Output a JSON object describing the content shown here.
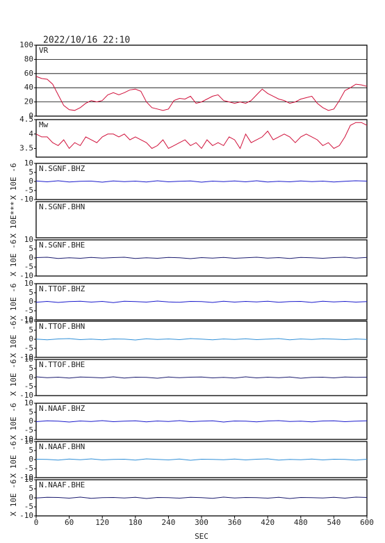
{
  "header": {
    "title": "2022/10/16 22:10"
  },
  "x_axis": {
    "label": "SEC",
    "xlim": [
      0,
      600
    ],
    "xticks": [
      0,
      60,
      120,
      180,
      240,
      300,
      360,
      420,
      480,
      540,
      600
    ]
  },
  "chart_data": [
    {
      "type": "line",
      "title": "VR",
      "color": "#d0103a",
      "grid": true,
      "ylim": [
        0,
        100
      ],
      "yticks": [
        0,
        20,
        40,
        60,
        80,
        100
      ],
      "x": [
        0,
        10,
        20,
        30,
        40,
        50,
        60,
        70,
        80,
        90,
        100,
        110,
        120,
        130,
        140,
        150,
        160,
        170,
        180,
        190,
        200,
        210,
        220,
        230,
        240,
        250,
        260,
        270,
        280,
        290,
        300,
        310,
        320,
        330,
        340,
        350,
        360,
        370,
        380,
        390,
        400,
        410,
        420,
        430,
        440,
        450,
        460,
        470,
        480,
        490,
        500,
        510,
        520,
        530,
        540,
        550,
        560,
        570,
        580,
        590,
        600
      ],
      "values": [
        56,
        53,
        52,
        45,
        30,
        15,
        9,
        8,
        12,
        18,
        22,
        20,
        22,
        30,
        33,
        30,
        33,
        37,
        38,
        35,
        20,
        12,
        10,
        8,
        10,
        22,
        25,
        24,
        28,
        18,
        20,
        24,
        28,
        30,
        22,
        20,
        18,
        20,
        18,
        22,
        30,
        38,
        32,
        28,
        24,
        22,
        18,
        20,
        24,
        26,
        28,
        18,
        12,
        8,
        10,
        22,
        36,
        40,
        45,
        44,
        42
      ]
    },
    {
      "type": "line",
      "title": "Mw",
      "color": "#d0103a",
      "grid": false,
      "ylim": [
        3.2,
        4.5
      ],
      "yticks": [
        3.5,
        4.0,
        4.5
      ],
      "x": [
        0,
        10,
        20,
        30,
        40,
        50,
        60,
        70,
        80,
        90,
        100,
        110,
        120,
        130,
        140,
        150,
        160,
        170,
        180,
        190,
        200,
        210,
        220,
        230,
        240,
        250,
        260,
        270,
        280,
        290,
        300,
        310,
        320,
        330,
        340,
        350,
        360,
        370,
        380,
        390,
        400,
        410,
        420,
        430,
        440,
        450,
        460,
        470,
        480,
        490,
        500,
        510,
        520,
        530,
        540,
        550,
        560,
        570,
        580,
        590,
        600
      ],
      "values": [
        4.0,
        3.9,
        3.9,
        3.7,
        3.6,
        3.8,
        3.5,
        3.7,
        3.6,
        3.9,
        3.8,
        3.7,
        3.9,
        4.0,
        4.0,
        3.9,
        4.0,
        3.8,
        3.9,
        3.8,
        3.7,
        3.5,
        3.6,
        3.8,
        3.5,
        3.6,
        3.7,
        3.8,
        3.6,
        3.7,
        3.5,
        3.8,
        3.6,
        3.7,
        3.6,
        3.9,
        3.8,
        3.5,
        4.0,
        3.7,
        3.8,
        3.9,
        4.1,
        3.8,
        3.9,
        4.0,
        3.9,
        3.7,
        3.9,
        4.0,
        3.9,
        3.8,
        3.6,
        3.7,
        3.5,
        3.6,
        3.9,
        4.3,
        4.4,
        4.4,
        4.3
      ]
    },
    {
      "type": "line",
      "title": "N.SGNF.BHZ",
      "ylabel": "X 10E -6",
      "color": "#1a1acc",
      "ylim": [
        -10,
        10
      ],
      "yticks": [
        -10,
        -5,
        0,
        5,
        10
      ],
      "x": [
        0,
        20,
        40,
        60,
        80,
        100,
        120,
        140,
        160,
        180,
        200,
        220,
        240,
        260,
        280,
        300,
        320,
        340,
        360,
        380,
        400,
        420,
        440,
        460,
        480,
        500,
        520,
        540,
        560,
        580,
        600
      ],
      "values": [
        0.3,
        -0.2,
        0.4,
        -0.3,
        0.1,
        0.2,
        -0.4,
        0.3,
        -0.1,
        0.2,
        -0.3,
        0.4,
        -0.2,
        0.1,
        0.3,
        -0.4,
        0.2,
        -0.1,
        0.3,
        -0.2,
        0.4,
        -0.3,
        0.1,
        -0.2,
        0.3,
        -0.1,
        0.2,
        -0.3,
        0.1,
        0.4,
        0.2
      ]
    },
    {
      "type": "empty",
      "title": "N.SGNF.BHN",
      "ylabel": "X 10E***"
    },
    {
      "type": "line",
      "title": "N.SGNF.BHE",
      "ylabel": "X 10E -6",
      "color": "#1a1a6e",
      "ylim": [
        -10,
        10
      ],
      "yticks": [
        -10,
        -5,
        0,
        5,
        10
      ],
      "x": [
        0,
        20,
        40,
        60,
        80,
        100,
        120,
        140,
        160,
        180,
        200,
        220,
        240,
        260,
        280,
        300,
        320,
        340,
        360,
        380,
        400,
        420,
        440,
        460,
        480,
        500,
        520,
        540,
        560,
        580,
        600
      ],
      "values": [
        0.2,
        0.4,
        -0.3,
        0.1,
        -0.2,
        0.3,
        -0.1,
        0.2,
        0.4,
        -0.3,
        0.1,
        -0.2,
        0.3,
        0.1,
        -0.4,
        0.2,
        -0.1,
        0.3,
        -0.2,
        0.1,
        0.4,
        -0.1,
        0.2,
        -0.3,
        0.3,
        0.1,
        -0.2,
        0.2,
        0.4,
        -0.1,
        0.3
      ]
    },
    {
      "type": "line",
      "title": "N.TTOF.BHZ",
      "ylabel": "X 10E -6",
      "color": "#1a1acc",
      "ylim": [
        -10,
        10
      ],
      "yticks": [
        -10,
        -5,
        0,
        5,
        10
      ],
      "x": [
        0,
        20,
        40,
        60,
        80,
        100,
        120,
        140,
        160,
        180,
        200,
        220,
        240,
        260,
        280,
        300,
        320,
        340,
        360,
        380,
        400,
        420,
        440,
        460,
        480,
        500,
        520,
        540,
        560,
        580,
        600
      ],
      "values": [
        -0.3,
        0.2,
        -0.4,
        0.1,
        0.3,
        -0.2,
        0.2,
        -0.5,
        0.3,
        0.1,
        -0.2,
        0.4,
        -0.1,
        -0.3,
        0.2,
        0.1,
        -0.4,
        0.3,
        -0.2,
        0.2,
        -0.1,
        0.3,
        -0.3,
        0.1,
        0.2,
        -0.4,
        0.3,
        -0.1,
        0.2,
        -0.2,
        0.1
      ]
    },
    {
      "type": "line",
      "title": "N.TTOF.BHN",
      "ylabel": "X 10E -6",
      "color": "#2f8fd8",
      "ylim": [
        -10,
        10
      ],
      "yticks": [
        -10,
        -5,
        0,
        5,
        10
      ],
      "x": [
        0,
        20,
        40,
        60,
        80,
        100,
        120,
        140,
        160,
        180,
        200,
        220,
        240,
        260,
        280,
        300,
        320,
        340,
        360,
        380,
        400,
        420,
        440,
        460,
        480,
        500,
        520,
        540,
        560,
        580,
        600
      ],
      "values": [
        0.1,
        -0.3,
        0.2,
        0.4,
        -0.2,
        0.1,
        -0.3,
        0.2,
        0.1,
        -0.4,
        0.3,
        -0.1,
        0.2,
        -0.2,
        0.4,
        0.1,
        -0.3,
        0.2,
        -0.1,
        0.3,
        -0.2,
        0.1,
        0.4,
        -0.3,
        0.2,
        -0.1,
        0.3,
        0.1,
        -0.2,
        0.2,
        -0.1
      ]
    },
    {
      "type": "line",
      "title": "N.TTOF.BHE",
      "ylabel": "X 10E -6",
      "color": "#1a1a6e",
      "ylim": [
        -10,
        10
      ],
      "yticks": [
        -10,
        -5,
        0,
        5,
        10
      ],
      "x": [
        0,
        20,
        40,
        60,
        80,
        100,
        120,
        140,
        160,
        180,
        200,
        220,
        240,
        260,
        280,
        300,
        320,
        340,
        360,
        380,
        400,
        420,
        440,
        460,
        480,
        500,
        520,
        540,
        560,
        580,
        600
      ],
      "values": [
        0.4,
        -0.1,
        0.2,
        -0.3,
        0.3,
        0.1,
        -0.2,
        0.4,
        -0.3,
        0.2,
        0.1,
        -0.4,
        0.3,
        -0.1,
        0.2,
        0.3,
        -0.2,
        0.1,
        -0.3,
        0.4,
        -0.2,
        0.2,
        -0.1,
        0.3,
        -0.4,
        0.1,
        0.2,
        -0.2,
        0.3,
        0.1,
        0.2
      ]
    },
    {
      "type": "line",
      "title": "N.NAAF.BHZ",
      "ylabel": "X 10E -6",
      "color": "#1a1acc",
      "ylim": [
        -10,
        10
      ],
      "yticks": [
        -10,
        -5,
        0,
        5,
        10
      ],
      "x": [
        0,
        20,
        40,
        60,
        80,
        100,
        120,
        140,
        160,
        180,
        200,
        220,
        240,
        260,
        280,
        300,
        320,
        340,
        360,
        380,
        400,
        420,
        440,
        460,
        480,
        500,
        520,
        540,
        560,
        580,
        600
      ],
      "values": [
        -0.2,
        0.3,
        0.1,
        -0.4,
        0.2,
        -0.1,
        0.4,
        -0.2,
        0.1,
        0.3,
        -0.3,
        0.2,
        -0.1,
        0.4,
        -0.2,
        0.1,
        0.3,
        -0.4,
        0.2,
        0.1,
        -0.3,
        0.2,
        0.4,
        -0.1,
        0.1,
        -0.3,
        0.2,
        0.3,
        -0.2,
        0.1,
        0.3
      ]
    },
    {
      "type": "line",
      "title": "N.NAAF.BHN",
      "ylabel": "X 10E -6",
      "color": "#2f8fd8",
      "ylim": [
        -10,
        10
      ],
      "yticks": [
        -10,
        -5,
        0,
        5,
        10
      ],
      "x": [
        0,
        20,
        40,
        60,
        80,
        100,
        120,
        140,
        160,
        180,
        200,
        220,
        240,
        260,
        280,
        300,
        320,
        340,
        360,
        380,
        400,
        420,
        440,
        460,
        480,
        500,
        520,
        540,
        560,
        580,
        600
      ],
      "values": [
        0.2,
        0.1,
        -0.3,
        0.3,
        -0.1,
        0.4,
        -0.2,
        0.1,
        0.2,
        -0.3,
        0.4,
        0.1,
        -0.2,
        0.3,
        -0.4,
        0.2,
        0.1,
        -0.1,
        0.3,
        -0.2,
        0.2,
        0.4,
        -0.3,
        0.1,
        -0.1,
        0.3,
        -0.2,
        0.2,
        0.1,
        -0.3,
        0.2
      ]
    },
    {
      "type": "line",
      "title": "N.NAAF.BHE",
      "ylabel": "X 10E -6",
      "color": "#1a1a6e",
      "ylim": [
        -10,
        10
      ],
      "yticks": [
        -10,
        -5,
        0,
        5,
        10
      ],
      "x": [
        0,
        20,
        40,
        60,
        80,
        100,
        120,
        140,
        160,
        180,
        200,
        220,
        240,
        260,
        280,
        300,
        320,
        340,
        360,
        380,
        400,
        420,
        440,
        460,
        480,
        500,
        520,
        540,
        560,
        580,
        600
      ],
      "values": [
        -0.1,
        0.3,
        0.2,
        -0.2,
        0.4,
        -0.3,
        0.1,
        0.2,
        -0.1,
        0.3,
        -0.4,
        0.2,
        0.1,
        -0.2,
        0.3,
        0.1,
        -0.3,
        0.4,
        -0.1,
        0.2,
        0.1,
        -0.2,
        0.3,
        -0.4,
        0.2,
        0.1,
        -0.1,
        0.3,
        -0.2,
        0.4,
        0.2
      ]
    }
  ]
}
